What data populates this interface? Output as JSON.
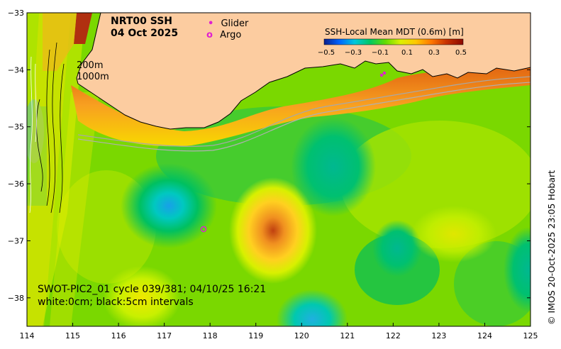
{
  "title": {
    "line1": "NRT00 SSH",
    "line2": "04 Oct 2025"
  },
  "legend": {
    "glider": "Glider",
    "argo": "Argo",
    "glider_marker": "•",
    "argo_marker": "o",
    "glider_color": "#e020d0",
    "argo_color": "#e020d0"
  },
  "colorbar": {
    "label": "SSH-Local Mean MDT (0.6m) [m]",
    "ticks": [
      "−0.5",
      "−0.3",
      "−0.1",
      "0.1",
      "0.3",
      "0.5"
    ],
    "colors": [
      "#0a1e8c",
      "#0064ff",
      "#00c8dc",
      "#00c864",
      "#64dc00",
      "#dcf000",
      "#ffc800",
      "#ff7800",
      "#c83200",
      "#8c0a00"
    ]
  },
  "depth_labels": {
    "shallow": "200m",
    "deep": "1000m"
  },
  "axes": {
    "x_ticks": [
      "114",
      "115",
      "116",
      "117",
      "118",
      "119",
      "120",
      "121",
      "122",
      "123",
      "124",
      "125"
    ],
    "y_ticks": [
      "−33",
      "−34",
      "−35",
      "−36",
      "−37",
      "−38"
    ],
    "xlim": [
      114,
      125
    ],
    "ylim": [
      -38.5,
      -33
    ]
  },
  "footer": {
    "line1": "SWOT-PIC2_01 cycle 039/381; 04/10/25 16:21",
    "line2": "white:0cm; black:5cm intervals"
  },
  "credit": "© IMOS 20-Oct-2025 23:05 Hobart",
  "colors": {
    "land": "#fccca0"
  }
}
